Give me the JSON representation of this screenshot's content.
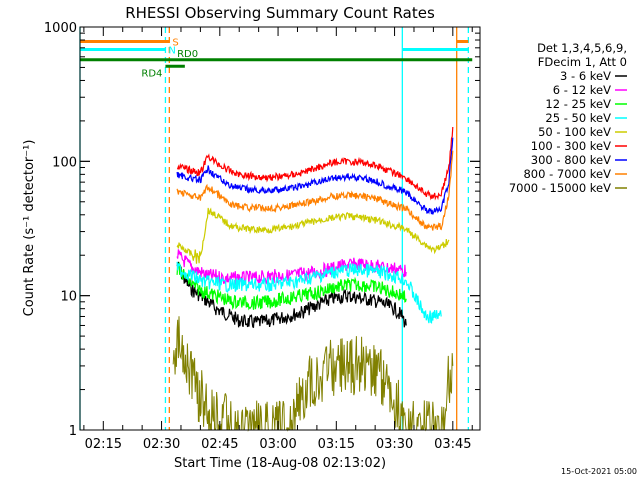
{
  "chart_data": {
    "type": "line",
    "title": "RHESSI Observing Summary Count Rates",
    "xlabel": "Start Time (18-Aug-08 02:13:02)",
    "ylabel": "Count Rate (s⁻¹ detector⁻¹)",
    "yscale": "log",
    "ylim": [
      1,
      1000
    ],
    "xlim": [
      "02:09",
      "03:52"
    ],
    "x_ticks": [
      "02:15",
      "02:30",
      "02:45",
      "03:00",
      "03:15",
      "03:30",
      "03:45"
    ],
    "y_ticks": [
      "1",
      "10",
      "100",
      "1000"
    ],
    "legend_header": [
      "Det 1,3,4,5,6,9,",
      "FDecim 1, Att 0"
    ],
    "legend_position": "right",
    "timestamp": "15-Oct-2021 05:00",
    "series": [
      {
        "name": "3 - 6 keV",
        "color": "#000000",
        "times": [
          "02:34",
          "02:36",
          "02:38",
          "02:40",
          "02:42",
          "02:44",
          "02:46",
          "02:48",
          "02:50",
          "02:54",
          "02:58",
          "03:02",
          "03:06",
          "03:10",
          "03:14",
          "03:18",
          "03:22",
          "03:26",
          "03:28",
          "03:30",
          "03:32",
          "03:33"
        ],
        "values": [
          17,
          13,
          11,
          10,
          9,
          8,
          7.5,
          7,
          6.5,
          6.3,
          6.5,
          7,
          7.5,
          8.5,
          9.5,
          10,
          9.5,
          9,
          8.5,
          8,
          7,
          6
        ]
      },
      {
        "name": "6 - 12 keV",
        "color": "#ff00ff",
        "times": [
          "02:34",
          "02:36",
          "02:38",
          "02:40",
          "02:42",
          "02:44",
          "02:46",
          "02:48",
          "02:50",
          "02:54",
          "02:58",
          "03:02",
          "03:06",
          "03:10",
          "03:14",
          "03:18",
          "03:22",
          "03:26",
          "03:28",
          "03:30",
          "03:32",
          "03:33"
        ],
        "values": [
          20,
          18,
          16,
          15,
          14,
          14,
          13.5,
          13.5,
          13.5,
          13.5,
          14,
          14,
          14.5,
          15,
          16,
          17,
          17,
          16.5,
          16,
          16,
          15.5,
          15
        ]
      },
      {
        "name": "12 - 25 keV",
        "color": "#00ff00",
        "times": [
          "02:34",
          "02:36",
          "02:38",
          "02:40",
          "02:42",
          "02:44",
          "02:46",
          "02:48",
          "02:50",
          "02:54",
          "02:58",
          "03:02",
          "03:06",
          "03:10",
          "03:14",
          "03:18",
          "03:22",
          "03:26",
          "03:28",
          "03:30",
          "03:32",
          "03:33"
        ],
        "values": [
          16,
          14,
          12,
          11,
          10.5,
          10,
          9.5,
          9,
          9,
          8.8,
          9,
          9.5,
          10,
          10.5,
          11.5,
          12,
          12,
          11.5,
          11,
          10.5,
          10,
          9.5
        ]
      },
      {
        "name": "25 - 50 keV",
        "color": "#00ffff",
        "times": [
          "02:34",
          "02:36",
          "02:38",
          "02:40",
          "02:42",
          "02:44",
          "02:46",
          "02:48",
          "02:50",
          "02:54",
          "02:58",
          "03:02",
          "03:06",
          "03:10",
          "03:14",
          "03:18",
          "03:22",
          "03:26",
          "03:28",
          "03:30",
          "03:32",
          "03:33",
          "03:38",
          "03:40",
          "03:42"
        ],
        "values": [
          16,
          15,
          14,
          13,
          12.5,
          12.5,
          12,
          12,
          12,
          12,
          12,
          12.5,
          13,
          14,
          15,
          15.5,
          15.5,
          15,
          14.5,
          14,
          13.5,
          13,
          7,
          7,
          7
        ]
      },
      {
        "name": "50 - 100 keV",
        "color": "#cccc00",
        "times": [
          "02:34",
          "02:36",
          "02:38",
          "02:40",
          "02:42",
          "02:44",
          "02:46",
          "02:48",
          "02:50",
          "02:54",
          "02:58",
          "03:02",
          "03:06",
          "03:10",
          "03:14",
          "03:18",
          "03:22",
          "03:26",
          "03:28",
          "03:30",
          "03:32",
          "03:33",
          "03:38",
          "03:40",
          "03:42",
          "03:44"
        ],
        "values": [
          24,
          22,
          20,
          19,
          43,
          40,
          36,
          33,
          32,
          31,
          31,
          32,
          34,
          36,
          38,
          39,
          38,
          36,
          34,
          33,
          32,
          31,
          24,
          22,
          23,
          26
        ]
      },
      {
        "name": "100 - 300 keV",
        "color": "#ff0000",
        "times": [
          "02:34",
          "02:36",
          "02:38",
          "02:40",
          "02:42",
          "02:44",
          "02:46",
          "02:48",
          "02:50",
          "02:54",
          "02:58",
          "03:02",
          "03:06",
          "03:10",
          "03:14",
          "03:18",
          "03:22",
          "03:26",
          "03:28",
          "03:30",
          "03:32",
          "03:33",
          "03:38",
          "03:40",
          "03:42",
          "03:44",
          "03:45"
        ],
        "values": [
          92,
          88,
          85,
          82,
          110,
          98,
          90,
          84,
          80,
          77,
          76,
          78,
          82,
          90,
          98,
          100,
          98,
          92,
          86,
          82,
          78,
          75,
          57,
          55,
          57,
          90,
          180
        ]
      },
      {
        "name": "300 - 800 keV",
        "color": "#0000ff",
        "times": [
          "02:34",
          "02:36",
          "02:38",
          "02:40",
          "02:42",
          "02:44",
          "02:46",
          "02:48",
          "02:50",
          "02:54",
          "02:58",
          "03:02",
          "03:06",
          "03:10",
          "03:14",
          "03:18",
          "03:22",
          "03:26",
          "03:28",
          "03:30",
          "03:32",
          "03:33",
          "03:38",
          "03:40",
          "03:42",
          "03:44",
          "03:45"
        ],
        "values": [
          80,
          77,
          74,
          72,
          88,
          78,
          70,
          66,
          63,
          61,
          61,
          62,
          65,
          70,
          75,
          77,
          75,
          70,
          66,
          63,
          60,
          58,
          44,
          42,
          44,
          70,
          150
        ]
      },
      {
        "name": "800 - 7000 keV",
        "color": "#ff8000",
        "times": [
          "02:34",
          "02:36",
          "02:38",
          "02:40",
          "02:42",
          "02:44",
          "02:46",
          "02:48",
          "02:50",
          "02:54",
          "02:58",
          "03:02",
          "03:06",
          "03:10",
          "03:14",
          "03:18",
          "03:22",
          "03:26",
          "03:28",
          "03:30",
          "03:32",
          "03:33",
          "03:38",
          "03:40",
          "03:42",
          "03:44",
          "03:45"
        ],
        "values": [
          60,
          58,
          55,
          53,
          65,
          58,
          52,
          48,
          46,
          45,
          45,
          46,
          48,
          51,
          55,
          56,
          55,
          52,
          49,
          47,
          45,
          44,
          33,
          32,
          33,
          55,
          120
        ]
      },
      {
        "name": "7000 - 15000 keV",
        "color": "#808000",
        "times": [
          "02:33",
          "02:34",
          "02:35",
          "02:36",
          "02:37",
          "02:38",
          "02:39",
          "02:40",
          "02:41",
          "02:42",
          "02:50",
          "02:56",
          "03:00",
          "03:03",
          "03:05",
          "03:07",
          "03:10",
          "03:15",
          "03:20",
          "03:25",
          "03:27",
          "03:29",
          "03:31",
          "03:33",
          "03:39",
          "03:40",
          "03:41",
          "03:42",
          "03:43",
          "03:44",
          "03:45"
        ],
        "values": [
          3,
          4,
          5,
          4,
          3,
          2.5,
          2,
          1.8,
          1.6,
          1.3,
          1,
          1,
          1,
          1,
          1.5,
          2,
          2.5,
          3,
          3,
          3,
          2.5,
          2,
          1.5,
          1,
          1,
          1,
          1,
          1,
          1.5,
          2.5,
          3
        ]
      }
    ],
    "annotations": [
      {
        "label": "S",
        "color": "#ff8000",
        "start": "02:09",
        "end": "02:32",
        "level": 780
      },
      {
        "label": "S",
        "color": "#ff8000",
        "start": "03:46",
        "end": "03:49",
        "level": 780
      },
      {
        "label": "N",
        "color": "#00ffff",
        "start": "02:09",
        "end": "02:31",
        "level": 680
      },
      {
        "label": "N",
        "color": "#00ffff",
        "start": "03:32",
        "end": "03:49",
        "level": 680
      },
      {
        "label": "RD0",
        "color": "#008000",
        "start": "02:09",
        "end": "03:50",
        "level": 570
      },
      {
        "label": "RD4",
        "color": "#008000",
        "start": "02:31",
        "end": "02:36",
        "level": 510
      }
    ],
    "vertical_lines": [
      {
        "time": "02:09",
        "color": "#00ffff",
        "style": "solid"
      },
      {
        "time": "02:31",
        "color": "#00ffff",
        "style": "dashed"
      },
      {
        "time": "02:32",
        "color": "#ff8000",
        "style": "dashed"
      },
      {
        "time": "03:32",
        "color": "#00ffff",
        "style": "solid"
      },
      {
        "time": "03:46",
        "color": "#ff8000",
        "style": "solid"
      },
      {
        "time": "03:49",
        "color": "#00ffff",
        "style": "dashed"
      }
    ]
  }
}
